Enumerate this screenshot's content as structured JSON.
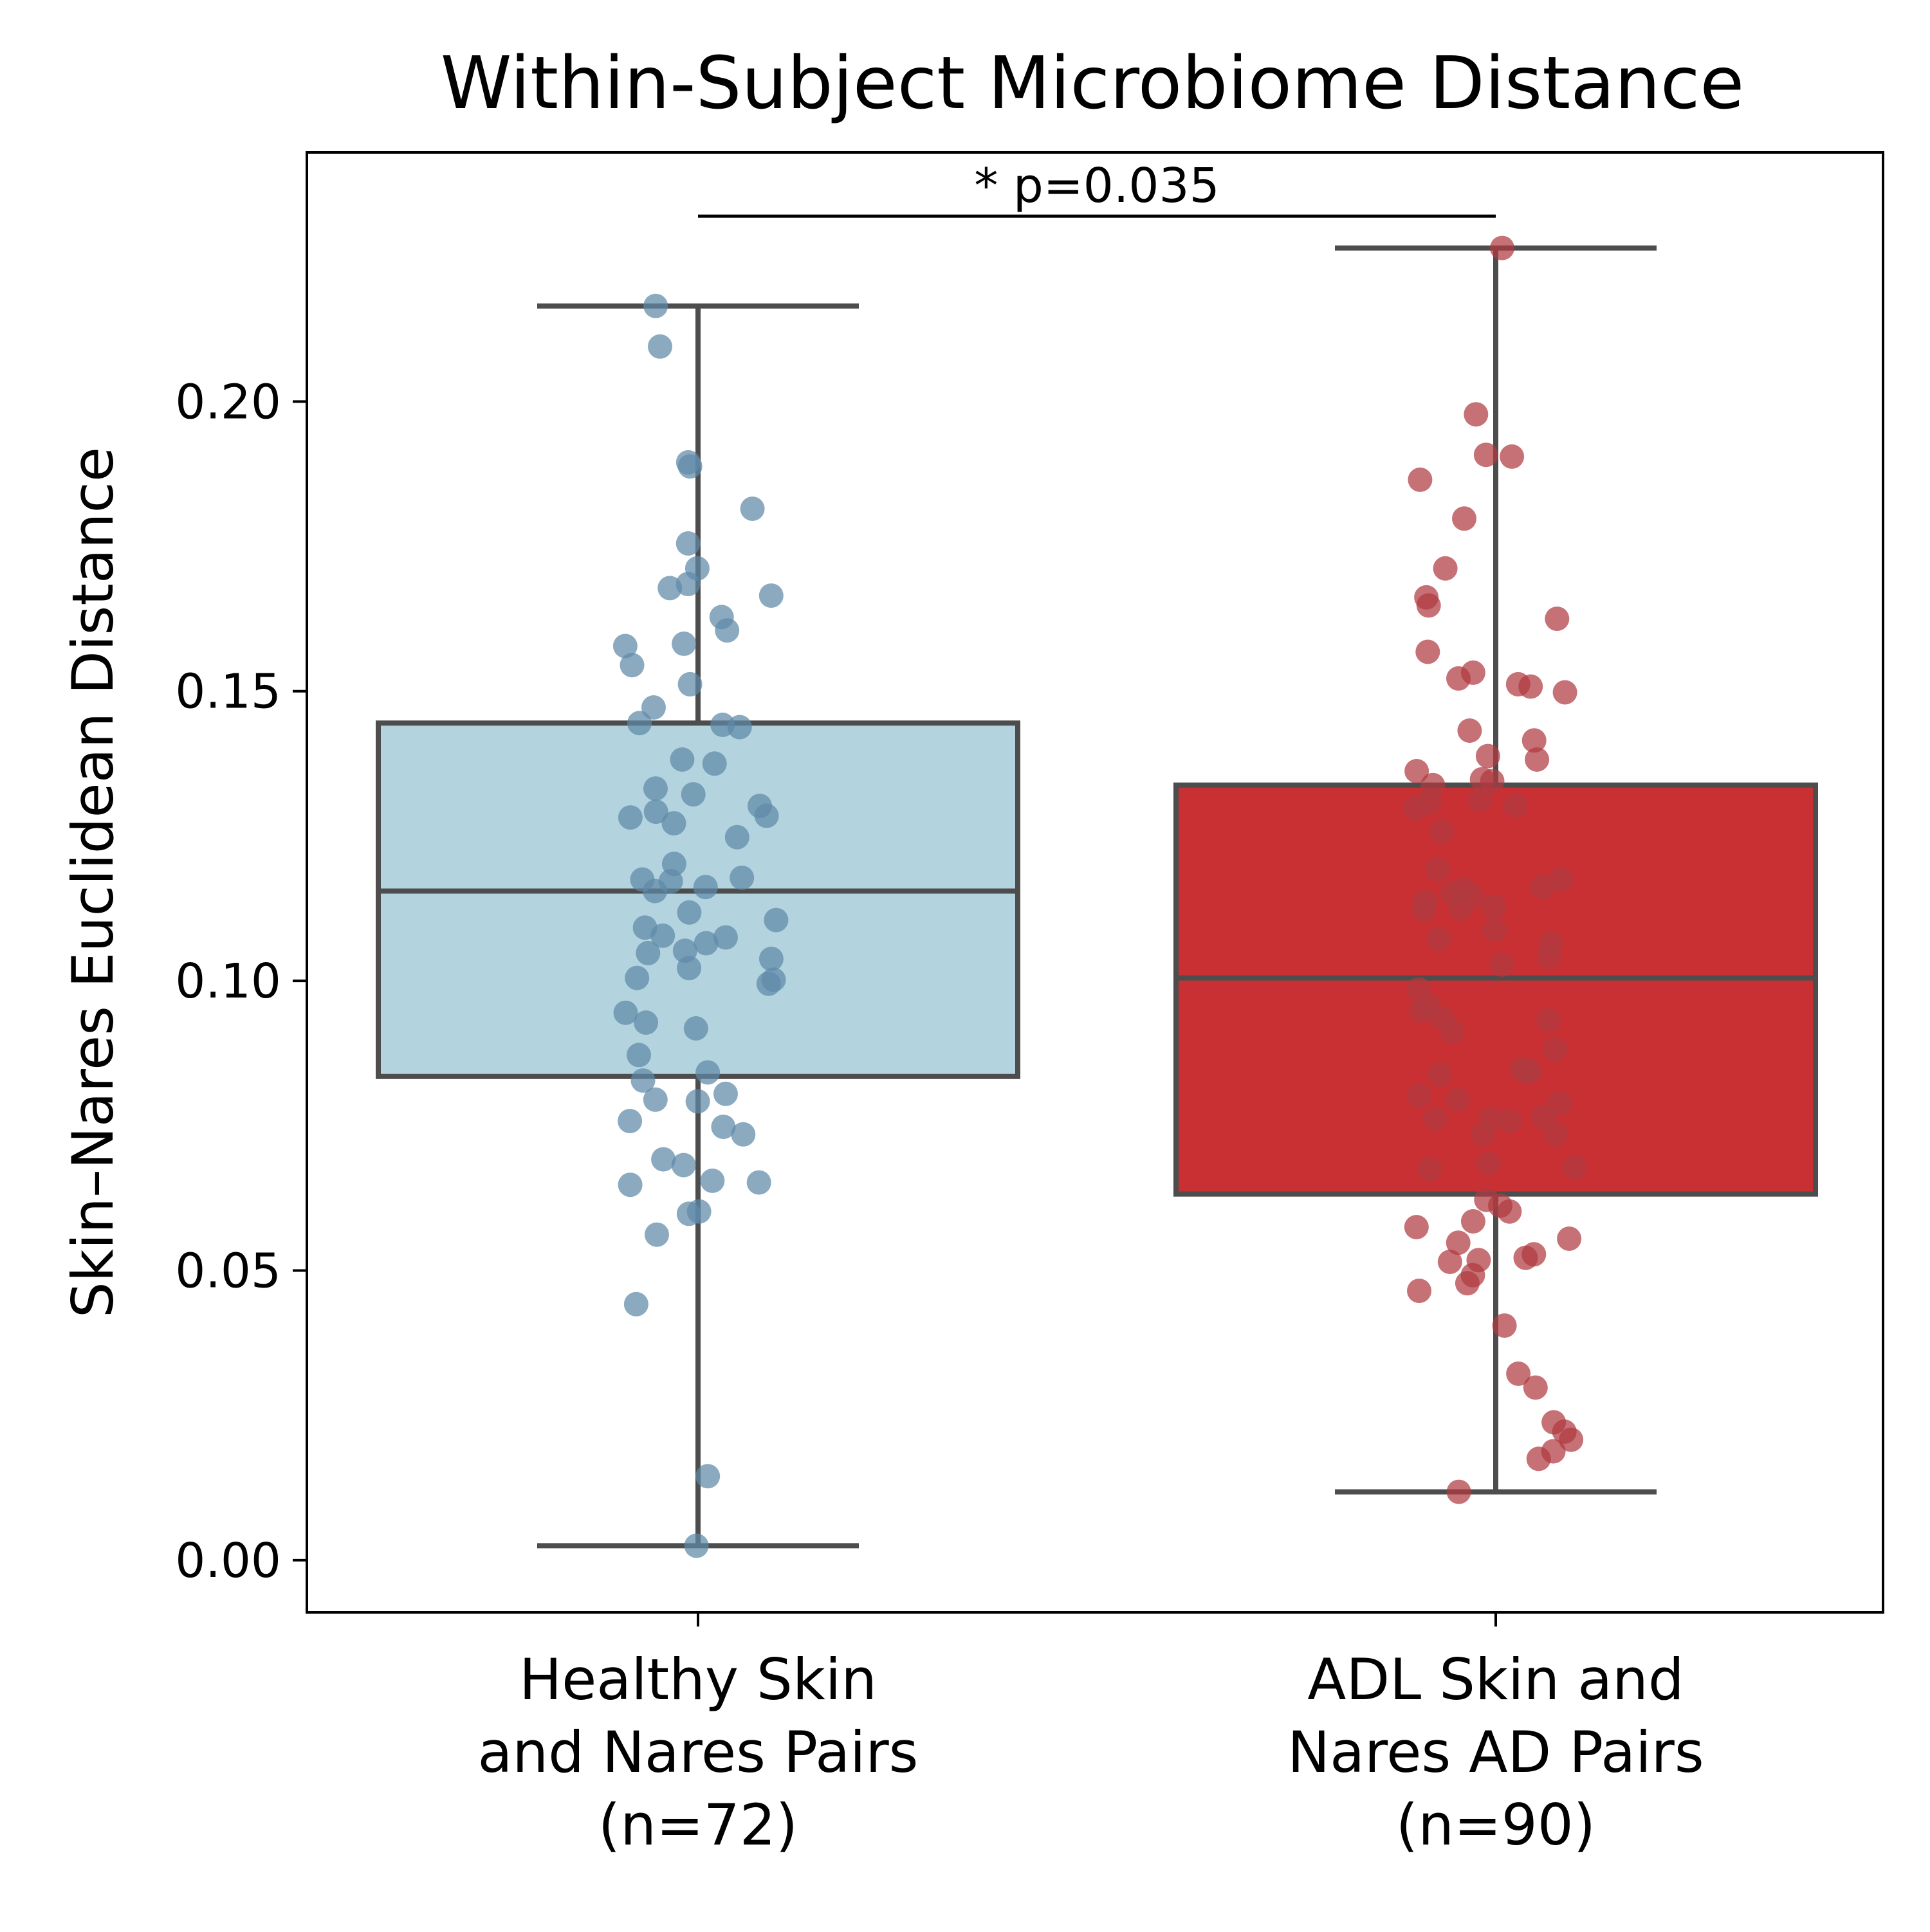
{
  "chart_data": {
    "type": "box",
    "title": "Within-Subject Microbiome Distance",
    "ylabel": "Skin–Nares Euclidean Distance",
    "xlabel": "",
    "ylim": [
      -0.009,
      0.243
    ],
    "yticks": [
      "0.00",
      "0.05",
      "0.10",
      "0.15",
      "0.20"
    ],
    "grid": false,
    "annotation": {
      "text": "* p=0.035",
      "y": 0.232
    },
    "groups": [
      {
        "label_lines": [
          "Healthy Skin",
          "and Nares Pairs",
          "(n=72)"
        ],
        "n": 72,
        "box_color": "#b3d4df",
        "point_color": "#5e89a8",
        "whisker_low": 0.0025,
        "q1": 0.0835,
        "median": 0.1155,
        "q3": 0.1445,
        "whisker_high": 0.2165,
        "points": [
          0.0025,
          0.0145,
          0.0442,
          0.0562,
          0.0598,
          0.0602,
          0.0648,
          0.0652,
          0.0655,
          0.0682,
          0.0692,
          0.0735,
          0.0748,
          0.0758,
          0.0792,
          0.0795,
          0.0805,
          0.0828,
          0.0842,
          0.0918,
          0.0928,
          0.0945,
          0.0995,
          0.1002,
          0.1005,
          0.1022,
          0.1038,
          0.1048,
          0.1052,
          0.1065,
          0.1075,
          0.1078,
          0.1092,
          0.1105,
          0.1118,
          0.1155,
          0.1162,
          0.1172,
          0.1175,
          0.1178,
          0.1202,
          0.1272,
          0.1282,
          0.1285,
          0.1292,
          0.1302,
          0.1322,
          0.1332,
          0.1375,
          0.1382,
          0.1438,
          0.1442,
          0.1445,
          0.1472,
          0.1512,
          0.1545,
          0.1578,
          0.1582,
          0.1605,
          0.1628,
          0.1665,
          0.1678,
          0.1685,
          0.1712,
          0.1755,
          0.1815,
          0.1888,
          0.1895,
          0.2095,
          0.2165,
          0.1248,
          0.0872
        ]
      },
      {
        "label_lines": [
          "ADL Skin and",
          "Nares AD Pairs",
          "(n=90)"
        ],
        "n": 90,
        "box_color": "#c83034",
        "point_color": "#b03a40",
        "whisker_low": 0.0118,
        "q1": 0.0632,
        "median": 0.1005,
        "q3": 0.1338,
        "whisker_high": 0.2265,
        "points": [
          0.0118,
          0.0175,
          0.0188,
          0.0208,
          0.0222,
          0.0238,
          0.0298,
          0.0322,
          0.0405,
          0.0465,
          0.0478,
          0.0492,
          0.0515,
          0.0518,
          0.0522,
          0.0528,
          0.0548,
          0.0555,
          0.0575,
          0.0585,
          0.0602,
          0.0622,
          0.0675,
          0.0678,
          0.0685,
          0.0735,
          0.0758,
          0.0762,
          0.0762,
          0.0765,
          0.0788,
          0.0795,
          0.0802,
          0.0838,
          0.0842,
          0.0845,
          0.0848,
          0.0882,
          0.0912,
          0.0932,
          0.0935,
          0.0948,
          0.0958,
          0.0985,
          0.1028,
          0.1042,
          0.1065,
          0.1072,
          0.1088,
          0.1122,
          0.1125,
          0.1128,
          0.1138,
          0.1145,
          0.1152,
          0.1158,
          0.1162,
          0.1192,
          0.1258,
          0.1298,
          0.1302,
          0.1308,
          0.1312,
          0.1338,
          0.1345,
          0.1348,
          0.1362,
          0.1382,
          0.1388,
          0.1415,
          0.1432,
          0.1498,
          0.1508,
          0.1512,
          0.1522,
          0.1532,
          0.1568,
          0.1625,
          0.1648,
          0.1662,
          0.1712,
          0.1798,
          0.1865,
          0.1905,
          0.1908,
          0.1978,
          0.2265,
          0.1175,
          0.0612,
          0.0735
        ]
      }
    ]
  }
}
